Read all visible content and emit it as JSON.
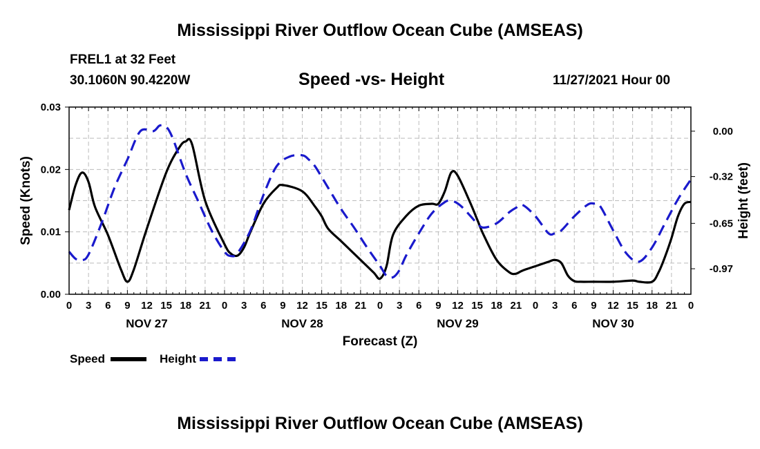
{
  "header": {
    "title": "Mississippi River Outflow Ocean Cube (AMSEAS)",
    "station": "FREL1 at 32 Feet",
    "coords": "30.1060N  90.4220W",
    "subtitle": "Speed -vs- Height",
    "datetime": "11/27/2021 Hour 00"
  },
  "footer": {
    "title": "Mississippi River Outflow Ocean Cube (AMSEAS)"
  },
  "legend": {
    "speed_label": "Speed",
    "height_label": "Height"
  },
  "colors": {
    "speed": "#000000",
    "height": "#1a1acc",
    "grid": "#bbbbbb"
  },
  "chart_data": {
    "type": "line",
    "title": "Speed -vs- Height",
    "xlabel": "Forecast (Z)",
    "ylabel": "Speed (Knots)",
    "y2label": "Height (feet)",
    "xlim": [
      0,
      96
    ],
    "ylim": [
      0,
      0.03
    ],
    "y2lim": [
      -1.15,
      0.17
    ],
    "x_ticks": [
      0,
      3,
      6,
      9,
      12,
      15,
      18,
      21,
      24,
      27,
      30,
      33,
      36,
      39,
      42,
      45,
      48,
      51,
      54,
      57,
      60,
      63,
      66,
      69,
      72,
      75,
      78,
      81,
      84,
      87,
      90,
      93,
      96
    ],
    "x_tick_labels": [
      "0",
      "3",
      "6",
      "9",
      "12",
      "15",
      "18",
      "21",
      "0",
      "3",
      "6",
      "9",
      "12",
      "15",
      "18",
      "21",
      "0",
      "3",
      "6",
      "9",
      "12",
      "15",
      "18",
      "21",
      "0",
      "3",
      "6",
      "9",
      "12",
      "15",
      "18",
      "21",
      "0"
    ],
    "day_labels": [
      {
        "x": 12,
        "label": "NOV 27"
      },
      {
        "x": 36,
        "label": "NOV 28"
      },
      {
        "x": 60,
        "label": "NOV 29"
      },
      {
        "x": 84,
        "label": "NOV 30"
      }
    ],
    "y_ticks": [
      0,
      0.01,
      0.02,
      0.03
    ],
    "y_tick_labels": [
      "0.00",
      "0.01",
      "0.02",
      "0.03"
    ],
    "y2_ticks": [
      0,
      -0.32,
      -0.65,
      -0.97
    ],
    "y2_tick_labels": [
      "0.00",
      "-0.32",
      "-0.65",
      "-0.97"
    ],
    "grid": true,
    "series": [
      {
        "name": "Speed",
        "axis": "left",
        "style": "solid",
        "x": [
          0,
          1,
          2,
          3,
          4,
          6,
          8,
          9,
          10,
          12,
          15,
          17,
          18,
          19,
          21,
          24,
          25,
          26,
          27,
          28,
          30,
          32,
          33,
          36,
          38,
          39,
          40,
          42,
          45,
          47,
          48,
          49,
          50,
          52,
          54,
          56,
          57,
          58,
          59,
          60,
          62,
          63,
          64,
          66,
          68,
          69,
          70,
          72,
          74,
          75,
          76,
          77,
          78,
          79,
          81,
          84,
          87,
          88,
          90,
          91,
          92,
          93,
          94,
          95,
          96
        ],
        "values": [
          0.0135,
          0.0175,
          0.0195,
          0.018,
          0.014,
          0.0095,
          0.004,
          0.002,
          0.004,
          0.0105,
          0.0195,
          0.0235,
          0.0245,
          0.024,
          0.015,
          0.008,
          0.0065,
          0.0062,
          0.0075,
          0.01,
          0.0145,
          0.017,
          0.0175,
          0.0165,
          0.014,
          0.0125,
          0.0105,
          0.0085,
          0.0055,
          0.0035,
          0.0025,
          0.0045,
          0.0095,
          0.0125,
          0.0142,
          0.0145,
          0.0145,
          0.0165,
          0.0195,
          0.019,
          0.0145,
          0.012,
          0.0095,
          0.0055,
          0.0035,
          0.0033,
          0.0038,
          0.0045,
          0.0052,
          0.0055,
          0.005,
          0.003,
          0.0021,
          0.002,
          0.002,
          0.002,
          0.0022,
          0.002,
          0.002,
          0.0035,
          0.006,
          0.009,
          0.0125,
          0.0145,
          0.0148
        ]
      },
      {
        "name": "Height",
        "axis": "right",
        "style": "dashed",
        "x": [
          0,
          1,
          2,
          3,
          5,
          7,
          9,
          11,
          13,
          14,
          15,
          16,
          18,
          20,
          22,
          24,
          25,
          26,
          28,
          30,
          32,
          34,
          36,
          37,
          38,
          40,
          42,
          44,
          46,
          48,
          49,
          50,
          51,
          52,
          54,
          56,
          58,
          59,
          60,
          61,
          62,
          63,
          64,
          66,
          68,
          69,
          70,
          72,
          74,
          75,
          76,
          78,
          80,
          81,
          82,
          84,
          86,
          88,
          90,
          92,
          94,
          96
        ],
        "values": [
          -0.85,
          -0.9,
          -0.91,
          -0.87,
          -0.65,
          -0.4,
          -0.2,
          0.0,
          0.0,
          0.04,
          0.03,
          -0.05,
          -0.3,
          -0.5,
          -0.7,
          -0.85,
          -0.88,
          -0.86,
          -0.7,
          -0.45,
          -0.25,
          -0.18,
          -0.17,
          -0.2,
          -0.25,
          -0.4,
          -0.55,
          -0.68,
          -0.82,
          -0.95,
          -1.02,
          -1.03,
          -0.98,
          -0.88,
          -0.72,
          -0.58,
          -0.5,
          -0.49,
          -0.51,
          -0.55,
          -0.6,
          -0.65,
          -0.68,
          -0.65,
          -0.57,
          -0.54,
          -0.52,
          -0.6,
          -0.72,
          -0.72,
          -0.7,
          -0.6,
          -0.52,
          -0.51,
          -0.53,
          -0.7,
          -0.86,
          -0.92,
          -0.82,
          -0.65,
          -0.48,
          -0.34
        ]
      }
    ]
  }
}
